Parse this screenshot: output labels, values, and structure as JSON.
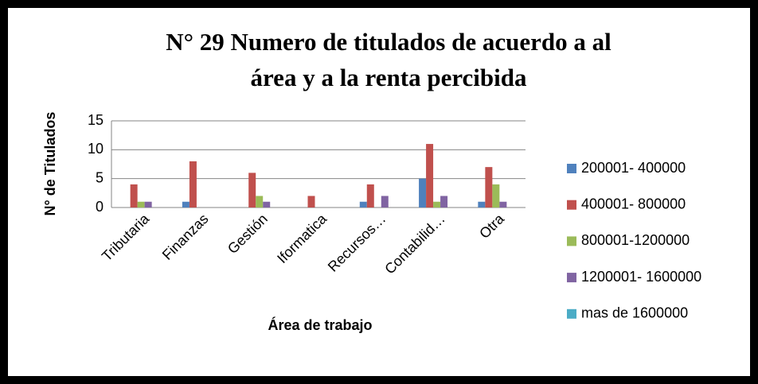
{
  "chart_data": {
    "type": "bar",
    "title": [
      "N° 29 Numero de titulados de acuerdo a al",
      "área y a la renta percibida"
    ],
    "x_label": "Área de trabajo",
    "y_label": "N° de Titulados",
    "categories": [
      "Tributaria",
      "Finanzas",
      "Gestión",
      "Iformatica",
      "Recursos…",
      "Contabilid…",
      "Otra"
    ],
    "series": [
      {
        "name": "200001- 400000",
        "color": "#4f81bd",
        "values": [
          0,
          1,
          0,
          0,
          1,
          5,
          1
        ]
      },
      {
        "name": "400001- 800000",
        "color": "#c0504d",
        "values": [
          4,
          8,
          6,
          2,
          4,
          11,
          7
        ]
      },
      {
        "name": "800001-1200000",
        "color": "#9bbb59",
        "values": [
          1,
          0,
          2,
          0,
          0,
          1,
          4
        ]
      },
      {
        "name": "1200001- 1600000",
        "color": "#8064a2",
        "values": [
          1,
          0,
          1,
          0,
          2,
          2,
          1
        ]
      },
      {
        "name": "mas de 1600000",
        "color": "#4bacc6",
        "values": [
          0,
          0,
          0,
          0,
          0,
          0,
          0
        ]
      }
    ],
    "ylim": [
      0,
      15
    ],
    "yticks": [
      0,
      5,
      10,
      15
    ],
    "grid": true,
    "legend": "right"
  }
}
